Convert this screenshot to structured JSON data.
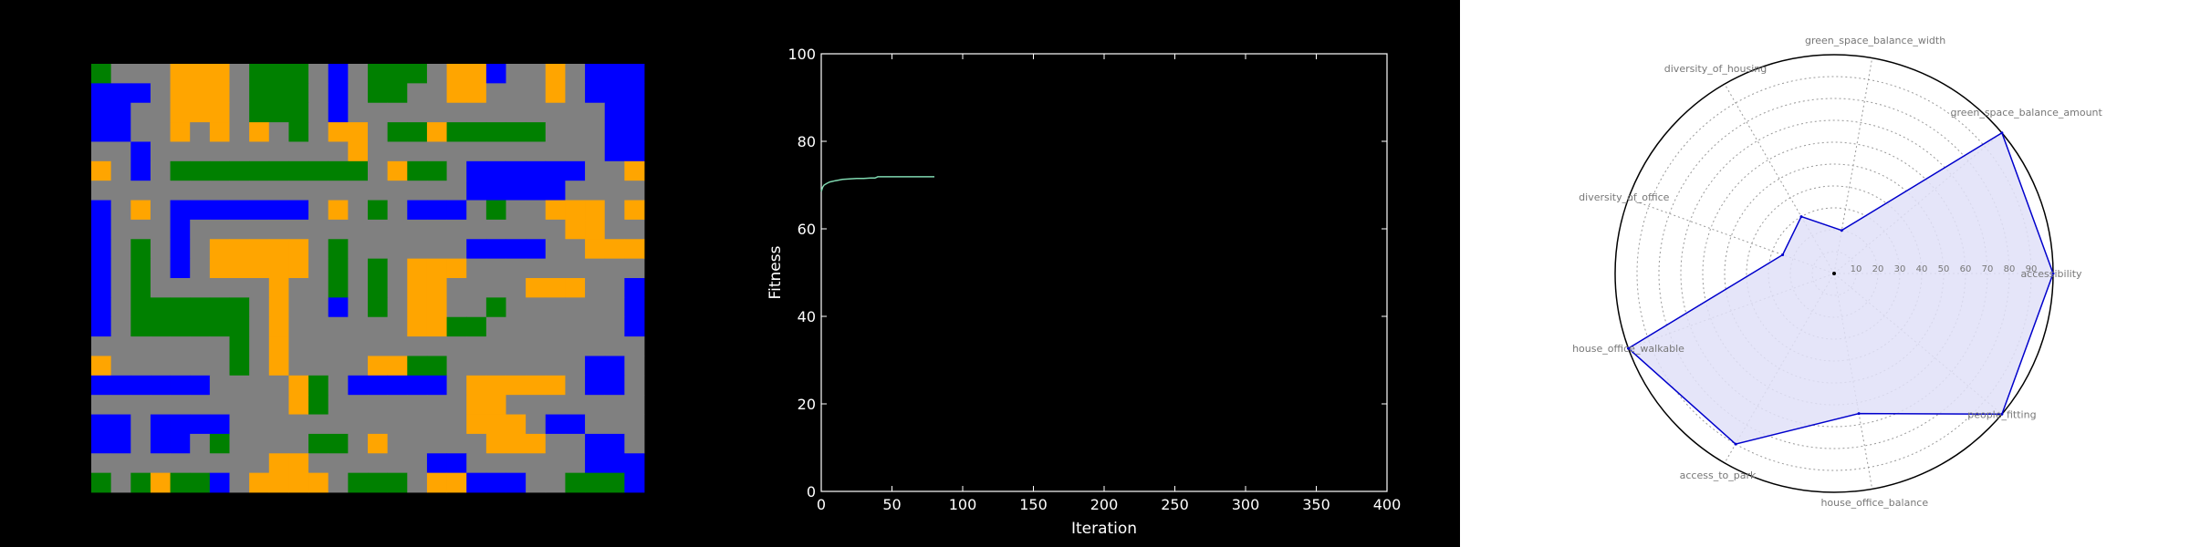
{
  "colors": {
    "road": "#808080",
    "housing": "#0000ff",
    "green": "#008000",
    "office": "#ffa500",
    "radar_line": "#0000cc",
    "radar_fill": "#e0e0f8",
    "fitness_line": "#7fd8b0"
  },
  "chart_data": [
    {
      "type": "heatmap",
      "rows": 22,
      "cols": 28,
      "legend": [
        "road",
        "housing",
        "green",
        "office"
      ],
      "cells": [
        "GRRROOORGGGRBRGGGROOBRRORBBB",
        "BBBROOORGGGRBRGGRROORRRORBBB",
        "BBRROOORGGGRBRRRRRRRRRRRRRBB",
        "BBRRORORORGROORGGOGGGGGRRRBB",
        "RRBRRRRRRRRRRORRRRRRRRRRRRBB",
        "ORBRGGGGGGGGGGROGGRBBBBBBRRO",
        "RRRRRRRRRRRRRRRRRRRBBBBBRRRR",
        "BRORBBBBBBBRORGRBBBRGRROOORO",
        "BRRRBRRRRRRRRRRRRRRRRRRROORR",
        "BRGRBROOOOORGRRRRRRBBBBRROOO",
        "BRGRBROOOOORGRGROOORRRRRRRRR",
        "BRGRRRRRRORRGRGROORRRROOORRB",
        "BRGGGGGGRORRBRGROORRGRRRRRRB",
        "BRGGGGGGRORRRRRROOGGRRRRRRRB",
        "RRRRRRRGRORRRRRRRRRRRRRRRRRR",
        "ORRRRRRGRORRRROOGGRRRRRRRBBR",
        "BBBBBBRRRROGRBBBBBROOOOORBBR",
        "RRRRRRRRRROGRRRRRRROORRRRRRR",
        "BBRBBBBRRRRRRRRRRRROOORBBRRR",
        "BBRBBRGRRRRGGRORRRRROOORRBBR",
        "RRRRRRRRROORRRRRRBBRRRRRRBBB",
        "GRGOGGBROOOORGGGROOBBBRRGGGB"
      ]
    },
    {
      "type": "line",
      "xlabel": "Iteration",
      "ylabel": "Fitness",
      "xlim": [
        0,
        400
      ],
      "ylim": [
        0,
        100
      ],
      "xticks": [
        0,
        50,
        100,
        150,
        200,
        250,
        300,
        350,
        400
      ],
      "yticks": [
        0,
        20,
        40,
        60,
        80,
        100
      ],
      "series": [
        {
          "x": [
            0,
            1,
            2,
            4,
            6,
            10,
            15,
            20,
            25,
            30,
            35,
            38,
            40,
            50,
            60,
            70,
            80
          ],
          "y": [
            68.5,
            69.5,
            70.0,
            70.4,
            70.7,
            71.0,
            71.3,
            71.4,
            71.5,
            71.5,
            71.6,
            71.6,
            71.9,
            71.9,
            71.9,
            71.9,
            71.9
          ]
        }
      ]
    },
    {
      "type": "radar",
      "rlim": [
        0,
        100
      ],
      "rticks": [
        10,
        20,
        30,
        40,
        50,
        60,
        70,
        80,
        90
      ],
      "categories": [
        "accessibility",
        "green_space_balance_amount",
        "green_space_balance_width",
        "diversity_of_housing",
        "diversity_of_office",
        "house_office_walkable",
        "access_to_park",
        "house_office_balance",
        "people_fitting"
      ],
      "values": [
        100,
        100,
        20,
        30,
        25,
        100,
        90,
        65,
        100
      ]
    }
  ]
}
